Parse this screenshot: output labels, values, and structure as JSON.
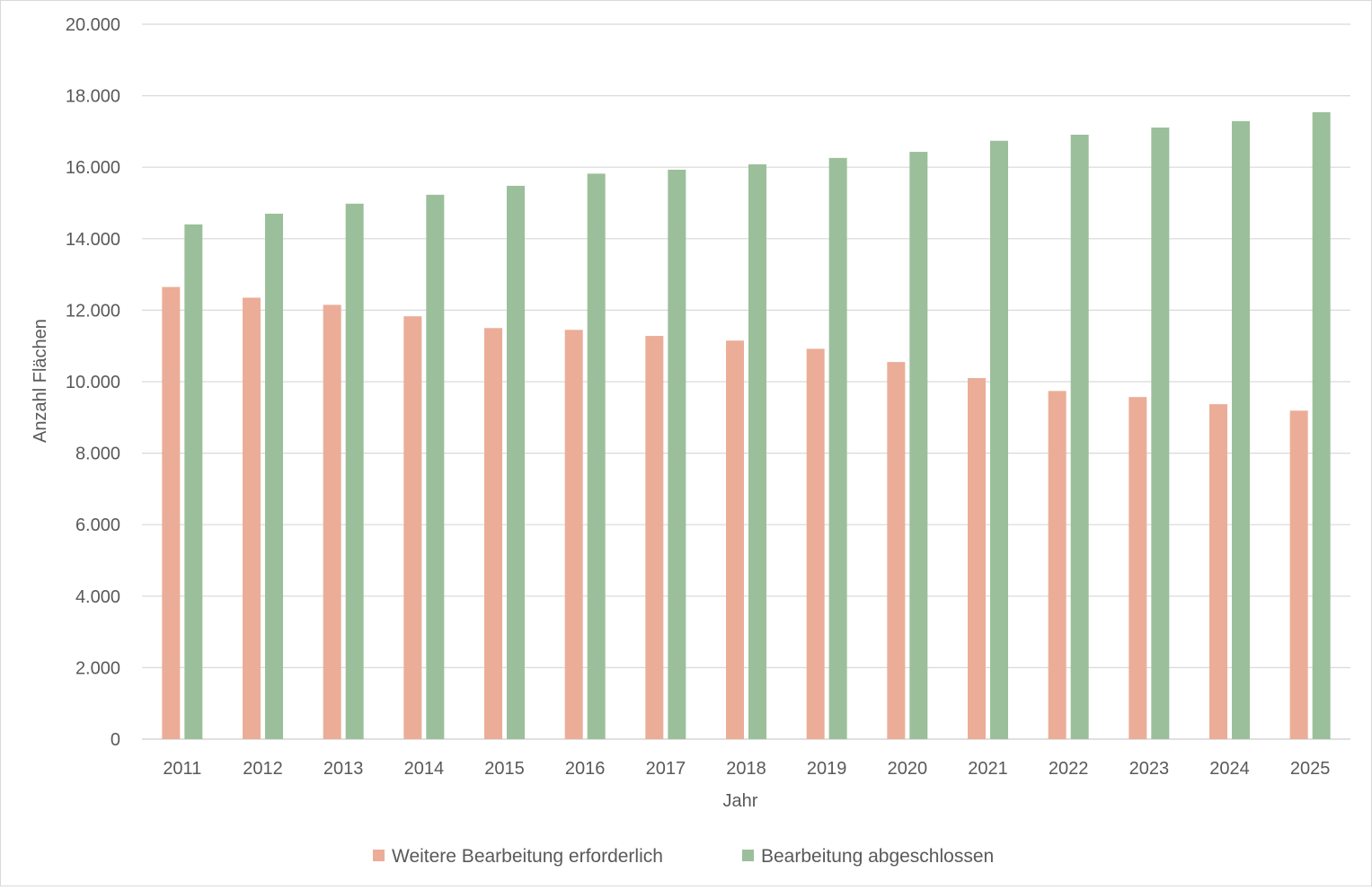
{
  "chart_data": {
    "type": "bar",
    "title": "",
    "xlabel": "Jahr",
    "ylabel": "Anzahl Flächen",
    "categories": [
      "2011",
      "2012",
      "2013",
      "2014",
      "2015",
      "2016",
      "2017",
      "2018",
      "2019",
      "2020",
      "2021",
      "2022",
      "2023",
      "2024",
      "2025"
    ],
    "series": [
      {
        "name": "Weitere Bearbeitung erforderlich",
        "color": "#ebad98",
        "values": [
          12650,
          12350,
          12150,
          11830,
          11500,
          11450,
          11280,
          11150,
          10920,
          10550,
          10100,
          9740,
          9570,
          9370,
          9190
        ]
      },
      {
        "name": "Bearbeitung abgeschlossen",
        "color": "#9bbf9a",
        "values": [
          14400,
          14700,
          14980,
          15230,
          15480,
          15820,
          15930,
          16080,
          16260,
          16430,
          16740,
          16910,
          17110,
          17290,
          17540
        ]
      }
    ],
    "ylim": [
      0,
      20000
    ],
    "yticks": [
      0,
      2000,
      4000,
      6000,
      8000,
      10000,
      12000,
      14000,
      16000,
      18000,
      20000
    ],
    "ytick_labels": [
      "0",
      "2.000",
      "4.000",
      "6.000",
      "8.000",
      "10.000",
      "12.000",
      "14.000",
      "16.000",
      "18.000",
      "20.000"
    ],
    "grid": true,
    "legend_position": "bottom",
    "gridline_color": "#d9d9d9"
  }
}
